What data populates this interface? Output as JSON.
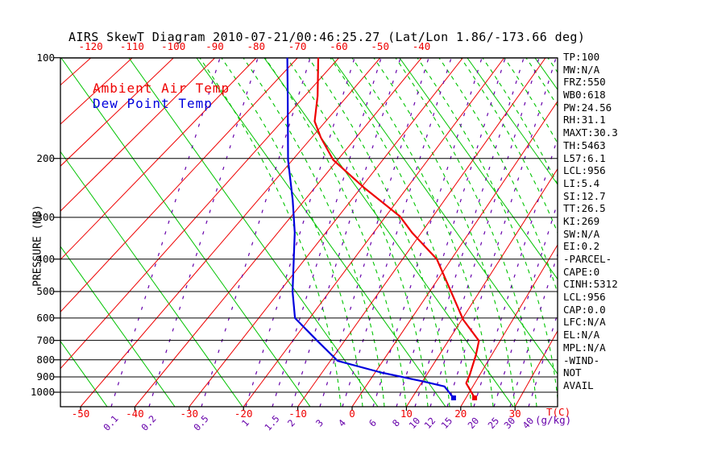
{
  "title": "AIRS SkewT Diagram 2010-07-21/00:46:25.27 (Lat/Lon 1.86/-173.66 deg)",
  "colors": {
    "ambient": "#ee0000",
    "dewpoint": "#0000dd",
    "isotherm": "#ee0000",
    "dry_adiabat": "#00c300",
    "moist_adiabat": "#00c300",
    "mixing_ratio": "#6600aa",
    "axis": "#000000"
  },
  "legend": {
    "ambient": "Ambient Air Temp",
    "dewpoint": "Dew Point Temp"
  },
  "axes": {
    "pressure_label": "PRESSURE (MB)",
    "pressure_ticks": [
      100,
      200,
      300,
      400,
      500,
      600,
      700,
      800,
      900,
      1000
    ],
    "top_temp_ticks": [
      -120,
      -110,
      -100,
      -90,
      -80,
      -70,
      -60,
      -50,
      -40
    ],
    "bottom_temp_ticks": [
      -50,
      -40,
      -30,
      -20,
      -10,
      0,
      10,
      20,
      30
    ],
    "temp_unit": "T(C)",
    "mixing_unit": "(g/kg)",
    "mixing_ratio_ticks": [
      0.1,
      0.2,
      0.5,
      1,
      1.5,
      2,
      3,
      4,
      6,
      8,
      10,
      12,
      15,
      20,
      25,
      30,
      40
    ]
  },
  "panel": {
    "lines": [
      "TP:100",
      "MW:N/A",
      "FRZ:550",
      "WB0:618",
      "PW:24.56",
      "RH:31.1",
      "MAXT:30.3",
      "TH:5463",
      "L57:6.1",
      "LCL:956",
      "LI:5.4",
      "SI:12.7",
      "TT:26.5",
      "KI:269",
      "SW:N/A",
      "EI:0.2",
      "-PARCEL-",
      "CAPE:0",
      "CINH:5312",
      "LCL:956",
      "CAP:0.0",
      "LFC:N/A",
      "EL:N/A",
      "MPL:N/A",
      "-WIND-",
      "NOT",
      "AVAIL"
    ]
  },
  "chart_data": {
    "type": "line",
    "title": "AIRS SkewT Diagram 2010-07-21/00:46:25.27 (Lat/Lon 1.86/-173.66 deg)",
    "xlabel": "T(C)",
    "ylabel": "PRESSURE (MB)",
    "y_scale": "log",
    "ylim": [
      100,
      1050
    ],
    "x_ticks_bottom_C": [
      -50,
      -40,
      -30,
      -20,
      -10,
      0,
      10,
      20,
      30
    ],
    "x_ticks_top_C": [
      -120,
      -110,
      -100,
      -90,
      -80,
      -70,
      -60,
      -50,
      -40
    ],
    "mixing_ratio_lines_g_kg": [
      0.1,
      0.2,
      0.5,
      1,
      1.5,
      2,
      3,
      4,
      6,
      8,
      10,
      12,
      15,
      20,
      25,
      30,
      40
    ],
    "grid": "skew-t background: red isotherms, green dry adiabats, green dashed moist adiabats, purple dashed mixing-ratio lines, black isobars",
    "legend_position": "top-left inside plot",
    "series": [
      {
        "name": "Ambient Air Temp",
        "color": "#ee0000",
        "points_p_mb_T_C": [
          [
            100,
            -65
          ],
          [
            130,
            -57
          ],
          [
            155,
            -52.5
          ],
          [
            173,
            -48
          ],
          [
            202,
            -41
          ],
          [
            244,
            -29.5
          ],
          [
            298,
            -17
          ],
          [
            333,
            -12
          ],
          [
            400,
            -3
          ],
          [
            515,
            5.2
          ],
          [
            607,
            10.3
          ],
          [
            702,
            15.9
          ],
          [
            775,
            17
          ],
          [
            887,
            18.1
          ],
          [
            940,
            18.4
          ],
          [
            1040,
            21.6
          ]
        ]
      },
      {
        "name": "Dew Point Temp",
        "color": "#0000dd",
        "points_p_mb_T_C": [
          [
            100,
            -72.5
          ],
          [
            130,
            -64
          ],
          [
            202,
            -51
          ],
          [
            267,
            -42.5
          ],
          [
            333,
            -36.5
          ],
          [
            400,
            -32.3
          ],
          [
            500,
            -27.4
          ],
          [
            600,
            -22.9
          ],
          [
            700,
            -15.4
          ],
          [
            806,
            -8.6
          ],
          [
            873,
            1.1
          ],
          [
            929,
            10.2
          ],
          [
            961,
            14.7
          ],
          [
            1040,
            17.7
          ]
        ]
      }
    ]
  }
}
